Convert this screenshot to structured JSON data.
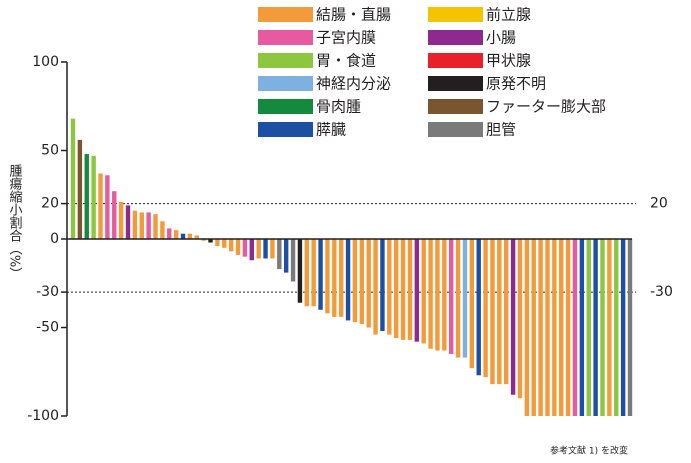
{
  "chart_data": {
    "type": "waterfall",
    "y_label": "腫瘍縮小割合（%）",
    "footnote": "参考文献 1) を改変",
    "ylim": [
      -100,
      100
    ],
    "yticks": [
      100,
      50,
      20,
      0,
      -30,
      -50,
      -100
    ],
    "reference_lines": [
      20,
      -30
    ],
    "legend": [
      {
        "name": "結腸・直腸",
        "color": "#f39a3a"
      },
      {
        "name": "子宮内膜",
        "color": "#e85aa0"
      },
      {
        "name": "胃・食道",
        "color": "#8dc63f"
      },
      {
        "name": "神経内分泌",
        "color": "#7fb1e0"
      },
      {
        "name": "骨肉腫",
        "color": "#138a3e"
      },
      {
        "name": "膵臓",
        "color": "#1d4fa3"
      },
      {
        "name": "前立腺",
        "color": "#f5c400"
      },
      {
        "name": "小腸",
        "color": "#8e2a8f"
      },
      {
        "name": "甲状腺",
        "color": "#e8202a"
      },
      {
        "name": "原発不明",
        "color": "#231f20"
      },
      {
        "name": "ファーター膨大部",
        "color": "#7a5530"
      },
      {
        "name": "胆管",
        "color": "#7a7a7a"
      }
    ],
    "values": [
      68,
      56,
      48,
      47,
      37,
      36,
      27,
      21,
      19,
      16,
      15,
      15,
      14,
      10,
      6,
      5,
      3,
      3,
      2,
      -1,
      -2,
      -4,
      -5,
      -7,
      -9,
      -10,
      -12,
      -11,
      -11,
      -11,
      -17,
      -19,
      -24,
      -36,
      -38,
      -38,
      -40,
      -42,
      -44,
      -44,
      -46,
      -47,
      -48,
      -50,
      -54,
      -52,
      -54,
      -56,
      -57,
      -57,
      -58,
      -59,
      -62,
      -63,
      -63,
      -65,
      -67,
      -67,
      -73,
      -77,
      -78,
      -82,
      -82,
      -82,
      -88,
      -90,
      -100,
      -100,
      -100,
      -100,
      -100,
      -100,
      -100,
      -100,
      -100,
      -100,
      -100,
      -100,
      -100,
      -100,
      -100,
      -100
    ],
    "colors": [
      "#8dc63f",
      "#7a5530",
      "#138a3e",
      "#8dc63f",
      "#f39a3a",
      "#e85aa0",
      "#e85aa0",
      "#f39a3a",
      "#8e2a8f",
      "#f39a3a",
      "#f39a3a",
      "#e85aa0",
      "#f39a3a",
      "#f39a3a",
      "#e85aa0",
      "#f39a3a",
      "#1d4fa3",
      "#f39a3a",
      "#f39a3a",
      "#f39a3a",
      "#231f20",
      "#f39a3a",
      "#f39a3a",
      "#f39a3a",
      "#f39a3a",
      "#e85aa0",
      "#8e2a8f",
      "#f39a3a",
      "#1d4fa3",
      "#f39a3a",
      "#7a7a7a",
      "#1d4fa3",
      "#7a7a7a",
      "#231f20",
      "#f39a3a",
      "#f39a3a",
      "#1d4fa3",
      "#f39a3a",
      "#f39a3a",
      "#f39a3a",
      "#1d4fa3",
      "#f39a3a",
      "#f39a3a",
      "#f39a3a",
      "#f39a3a",
      "#1d4fa3",
      "#f39a3a",
      "#f39a3a",
      "#f39a3a",
      "#f39a3a",
      "#8e2a8f",
      "#f39a3a",
      "#f39a3a",
      "#f39a3a",
      "#f39a3a",
      "#e85aa0",
      "#f39a3a",
      "#7fb1e0",
      "#f39a3a",
      "#1d4fa3",
      "#f39a3a",
      "#f39a3a",
      "#f39a3a",
      "#f39a3a",
      "#8e2a8f",
      "#f39a3a",
      "#f39a3a",
      "#f39a3a",
      "#f39a3a",
      "#f39a3a",
      "#f39a3a",
      "#f39a3a",
      "#f39a3a",
      "#e85aa0",
      "#1d4fa3",
      "#8dc63f",
      "#1d4fa3",
      "#8dc63f",
      "#f39a3a",
      "#8dc63f",
      "#1d4fa3",
      "#7a7a7a"
    ]
  }
}
